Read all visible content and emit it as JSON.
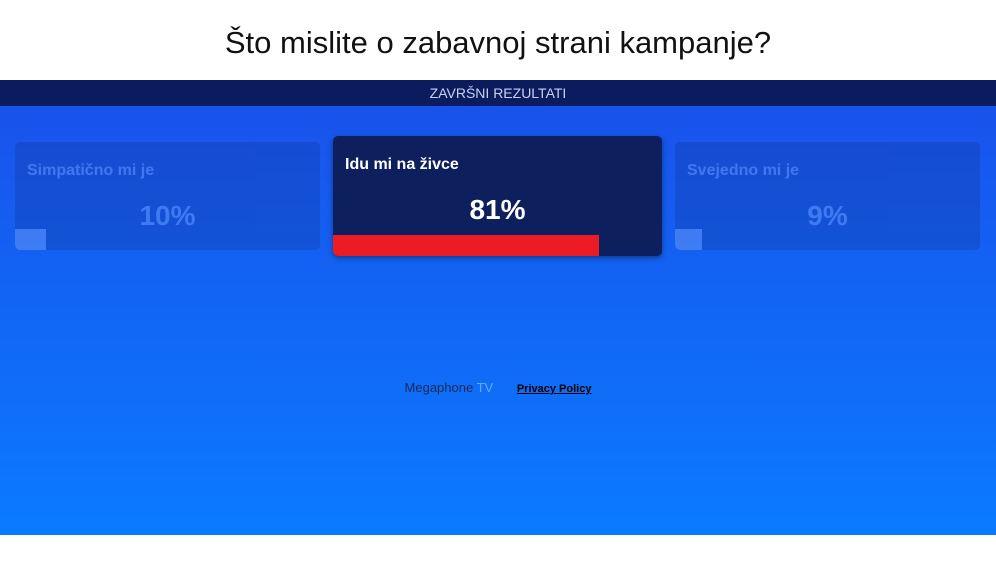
{
  "title": "Što mislite o zabavnoj strani kampanje?",
  "banner": "ZAVRŠNI REZULTATI",
  "options": [
    {
      "label": "Simpatično mi je",
      "value": 10,
      "value_label": "10%",
      "selected": false
    },
    {
      "label": "Idu mi na živce",
      "value": 81,
      "value_label": "81%",
      "selected": true
    },
    {
      "label": "Svejedno mi je",
      "value": 9,
      "value_label": "9%",
      "selected": false
    }
  ],
  "footer": {
    "brand": "Megaphone",
    "brand_suffix": "TV",
    "privacy": "Privacy Policy"
  }
}
